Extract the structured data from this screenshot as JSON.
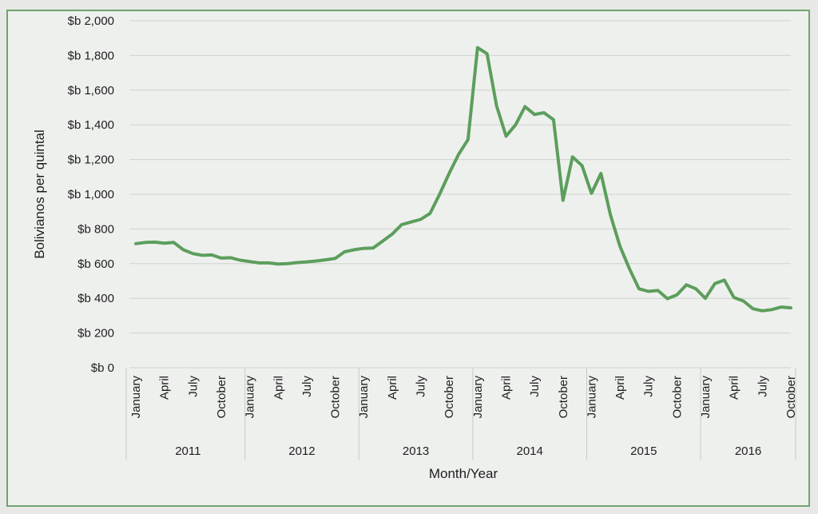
{
  "chart_data": {
    "type": "line",
    "xlabel": "Month/Year",
    "ylabel": "Bolivianos per quintal",
    "ylim": [
      0,
      2000
    ],
    "y_ticks": [
      "$b 0",
      "$b 200",
      "$b 400",
      "$b 600",
      "$b 800",
      "$b 1,000",
      "$b 1,200",
      "$b 1,400",
      "$b 1,600",
      "$b 1,800",
      "$b 2,000"
    ],
    "month_tick_labels": [
      "January",
      "April",
      "July",
      "October"
    ],
    "years": [
      "2011",
      "2012",
      "2013",
      "2014",
      "2015",
      "2016"
    ],
    "grid": true,
    "line_color": "#5c9e5c",
    "series": [
      {
        "values": [
          715,
          722,
          724,
          718,
          722,
          680,
          658,
          648,
          650,
          632,
          634,
          620,
          612,
          604,
          604,
          598,
          600,
          606,
          610,
          615,
          622,
          630,
          668,
          680,
          688,
          690,
          730,
          770,
          825,
          840,
          855,
          890,
          1000,
          1120,
          1230,
          1315,
          1845,
          1810,
          1510,
          1335,
          1400,
          1505,
          1460,
          1470,
          1430,
          965,
          1215,
          1165,
          1005,
          1120,
          880,
          700,
          570,
          455,
          440,
          445,
          398,
          420,
          478,
          455,
          400,
          485,
          505,
          405,
          385,
          340,
          328,
          335,
          350,
          345
        ]
      }
    ]
  }
}
